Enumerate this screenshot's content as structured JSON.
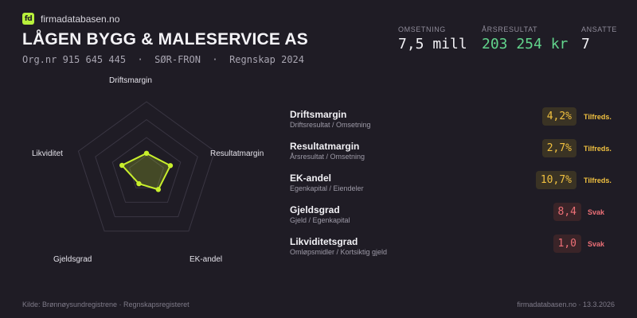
{
  "brand": {
    "logo_text": "fd",
    "name": "firmadatabasen.no"
  },
  "company": {
    "name": "LÅGEN BYGG & MALESERVICE AS",
    "meta": "Org.nr 915 645 445  ·  SØR-FRON  ·  Regnskap 2024"
  },
  "kpis": [
    {
      "label": "OMSETNING",
      "value": "7,5 mill",
      "color": "#f1f0f4"
    },
    {
      "label": "ÅRSRESULTAT",
      "value": "203 254 kr",
      "color": "#62d48c"
    },
    {
      "label": "ANSATTE",
      "value": "7",
      "color": "#f1f0f4"
    }
  ],
  "radar": {
    "axes": [
      "Driftsmargin",
      "Resultatmargin",
      "EK-andel",
      "Gjeldsgrad",
      "Likviditet"
    ],
    "values": [
      0.28,
      0.35,
      0.28,
      0.18,
      0.36
    ],
    "accent": "#c8ef2c"
  },
  "metrics": [
    {
      "name": "Driftsmargin",
      "desc": "Driftsresultat / Omsetning",
      "value": "4,2%",
      "status": "Tilfreds.",
      "level": "ok"
    },
    {
      "name": "Resultatmargin",
      "desc": "Årsresultat / Omsetning",
      "value": "2,7%",
      "status": "Tilfreds.",
      "level": "ok"
    },
    {
      "name": "EK-andel",
      "desc": "Egenkapital / Eiendeler",
      "value": "10,7%",
      "status": "Tilfreds.",
      "level": "ok"
    },
    {
      "name": "Gjeldsgrad",
      "desc": "Gjeld / Egenkapital",
      "value": "8,4",
      "status": "Svak",
      "level": "weak"
    },
    {
      "name": "Likviditetsgrad",
      "desc": "Omløpsmidler / Kortsiktig gjeld",
      "value": "1,0",
      "status": "Svak",
      "level": "weak"
    }
  ],
  "footer": {
    "source": "Kilde: Brønnøysundregistrene · Regnskapsregisteret",
    "site_date": "firmadatabasen.no · 13.3.2026"
  }
}
